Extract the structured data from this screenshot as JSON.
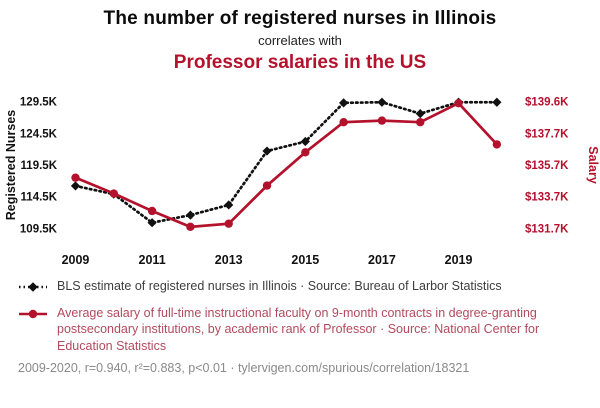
{
  "header": {
    "title_line1": "The number of registered nurses in Illinois",
    "subtitle": "correlates with",
    "title_line2": "Professor salaries in the US"
  },
  "colors": {
    "nurses": "#111111",
    "salary": "#b4122c",
    "legend_gray": "#3d3d3d",
    "footer_gray": "#8a8a8a"
  },
  "chart_data": {
    "type": "line",
    "title": "The number of registered nurses in Illinois correlates with Professor salaries in the US",
    "x": [
      2009,
      2010,
      2011,
      2012,
      2013,
      2014,
      2015,
      2016,
      2017,
      2018,
      2019,
      2020
    ],
    "series": [
      {
        "name": "BLS estimate of registered nurses in Illinois",
        "axis": "left",
        "unit": "K nurses",
        "values": [
          116.2,
          114.9,
          110.4,
          111.6,
          113.2,
          121.7,
          123.2,
          129.3,
          129.4,
          127.6,
          129.4,
          129.4
        ]
      },
      {
        "name": "Average salary of full-time instructional faculty, rank of Professor",
        "axis": "right",
        "unit": "$K",
        "values": [
          134.9,
          133.9,
          132.8,
          131.8,
          132.0,
          134.4,
          136.5,
          138.4,
          138.5,
          138.4,
          139.6,
          137.0
        ]
      }
    ],
    "x_ticks": [
      2009,
      2011,
      2013,
      2015,
      2017,
      2019
    ],
    "left_ticks": [
      {
        "label": "109.5K",
        "value": 109.5
      },
      {
        "label": "114.5K",
        "value": 114.5
      },
      {
        "label": "119.5K",
        "value": 119.5
      },
      {
        "label": "124.5K",
        "value": 124.5
      },
      {
        "label": "129.5K",
        "value": 129.5
      }
    ],
    "right_ticks": [
      {
        "label": "$131.7K",
        "at": 109.5
      },
      {
        "label": "$133.7K",
        "at": 114.5
      },
      {
        "label": "$135.7K",
        "at": 119.5
      },
      {
        "label": "$137.7K",
        "at": 124.5
      },
      {
        "label": "$139.6K",
        "at": 129.5
      }
    ],
    "ylabel_left": "Registered Nurses",
    "ylabel_right": "Salary",
    "x_range": [
      2008.7,
      2020.5
    ],
    "ylim_left": [
      107.2,
      131.8
    ],
    "axis_map": {
      "left_ref": 109.5,
      "right_ref": 131.7,
      "left_per_right": 2.5
    },
    "grid": false,
    "legend_position": "below"
  },
  "legend": {
    "nurses_label": "BLS estimate of registered nurses in Illinois · Source: Bureau of Larbor Statistics",
    "salary_label": "Average salary of full-time instructional faculty on 9-month contracts in degree-granting postsecondary institutions, by academic rank of Professor · Source: National Center for Education Statistics",
    "footer": "2009-2020, r=0.940, r²=0.883, p<0.01 · tylervigen.com/spurious/correlation/18321"
  }
}
